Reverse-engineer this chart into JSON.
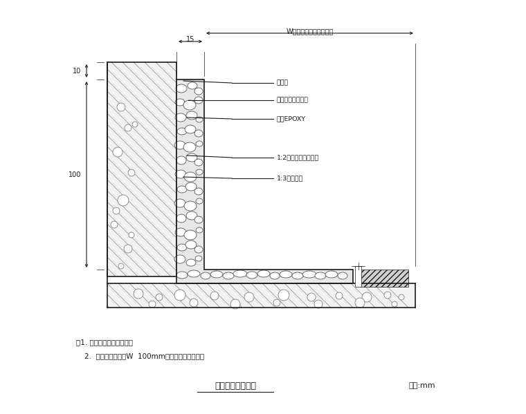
{
  "title": "粉石子踢脚大样图",
  "unit_label": "单位:mm",
  "note1": "注1. 粉石子采买选彩粉石。",
  "note2": "    2. 粉件粉石子数液W  100mm半径数平分割调整。",
  "dim_15": "15",
  "dim_W": "W（另详平面示意详图）",
  "dim_10": "10",
  "dim_100": "100",
  "labels": [
    "粉面层",
    "网缝刷涂一底二度",
    "涂布EPOXY",
    "1:2水泥粉天然彩石粉",
    "1:3水泥砂浆"
  ],
  "bg_color": "#ffffff",
  "line_color": "#1a1a1a",
  "pebble_color": "#ffffff",
  "pebble_edge": "#444444",
  "hatch_color": "#aaaaaa",
  "concrete_bg": "#f0f0f0",
  "terrazzo_bg": "#e0e0e0"
}
